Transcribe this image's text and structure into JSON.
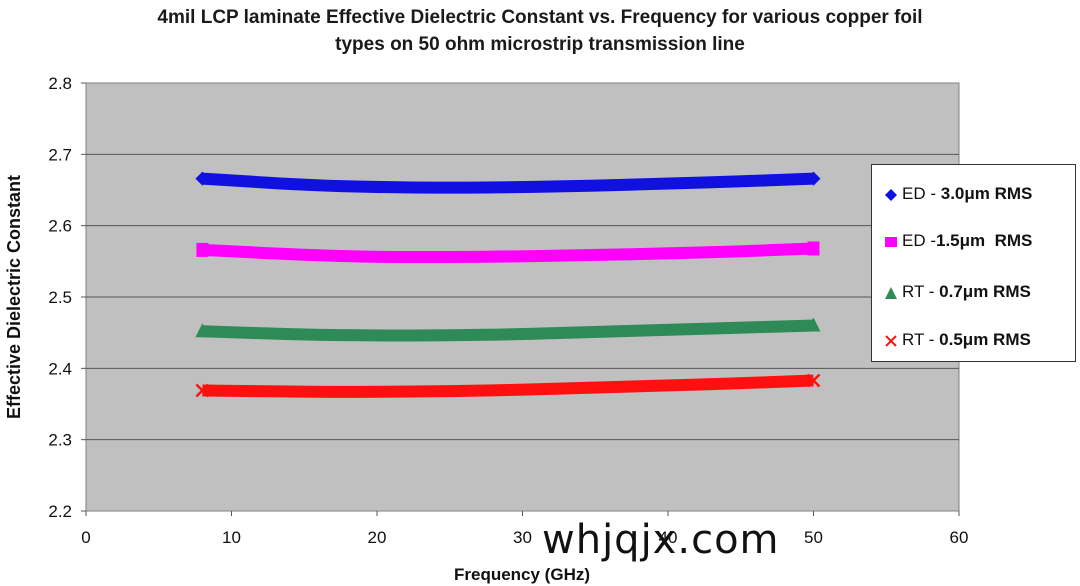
{
  "chart_data": {
    "type": "line",
    "title_line1": "4mil LCP laminate Effective Dielectric Constant vs. Frequency for various copper foil",
    "title_line2": "types on 50 ohm microstrip transmission line",
    "xlabel": "Frequency (GHz)",
    "ylabel": "Effective Dielectric Constant",
    "xlim": [
      0,
      60
    ],
    "ylim": [
      2.2,
      2.8
    ],
    "x_ticks": [
      "0",
      "10",
      "20",
      "30",
      "40",
      "50",
      "60"
    ],
    "y_ticks": [
      "2.2",
      "2.3",
      "2.4",
      "2.5",
      "2.6",
      "2.7",
      "2.8"
    ],
    "grid": true,
    "legend_position": "right",
    "plot_background": "#c0c0c0",
    "x": [
      8,
      15,
      20,
      25,
      30,
      35,
      40,
      45,
      50
    ],
    "series": [
      {
        "name_prefix": "ED - ",
        "name_bold": "3.0",
        "name_unit": "μm RMS",
        "marker": "diamond",
        "color": "#1010e0",
        "values": [
          2.666,
          2.657,
          2.654,
          2.653,
          2.654,
          2.656,
          2.659,
          2.662,
          2.666
        ]
      },
      {
        "name_prefix": "ED -",
        "name_bold": "1.5",
        "name_unit": "μm  RMS",
        "marker": "square",
        "color": "#ff00ff",
        "values": [
          2.566,
          2.559,
          2.556,
          2.556,
          2.557,
          2.559,
          2.561,
          2.564,
          2.568
        ]
      },
      {
        "name_prefix": "RT - ",
        "name_bold": "0.7",
        "name_unit": "μm RMS",
        "marker": "triangle",
        "color": "#2e8b57",
        "values": [
          2.452,
          2.447,
          2.446,
          2.446,
          2.448,
          2.451,
          2.454,
          2.457,
          2.46
        ]
      },
      {
        "name_prefix": "RT - ",
        "name_bold": "0.5",
        "name_unit": "μm RMS",
        "marker": "x",
        "color": "#ff1010",
        "values": [
          2.369,
          2.367,
          2.367,
          2.368,
          2.37,
          2.373,
          2.376,
          2.379,
          2.383
        ]
      }
    ]
  },
  "watermark": "whjqjx.com"
}
